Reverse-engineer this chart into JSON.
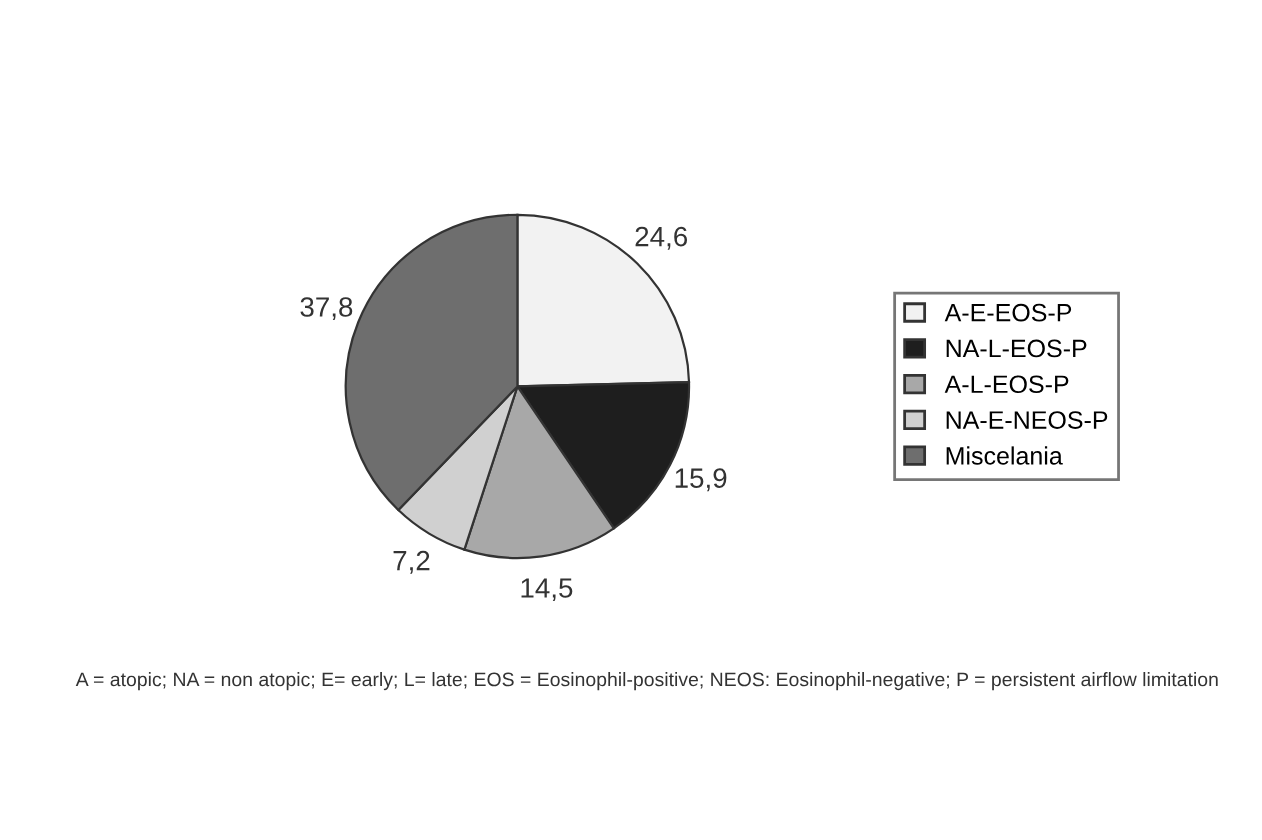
{
  "chart_data": {
    "type": "pie",
    "categories": [
      "A-E-EOS-P",
      "NA-L-EOS-P",
      "A-L-EOS-P",
      "NA-E-NEOS-P",
      "Miscelania"
    ],
    "values": [
      24.6,
      15.9,
      14.5,
      7.2,
      37.8
    ],
    "value_labels": [
      "24,6",
      "15,9",
      "14,5",
      "7,2",
      "37,8"
    ],
    "colors": [
      "#f2f2f2",
      "#1e1e1e",
      "#a8a8a8",
      "#d0d0d0",
      "#6e6e6e"
    ],
    "legend": "right",
    "annotations": [
      "A = atopic; NA = non atopic; E= early; L= late; EOS = Eosinophil-positive; NEOS: Eosinophil-negative; P = persistent airflow limitation"
    ]
  }
}
